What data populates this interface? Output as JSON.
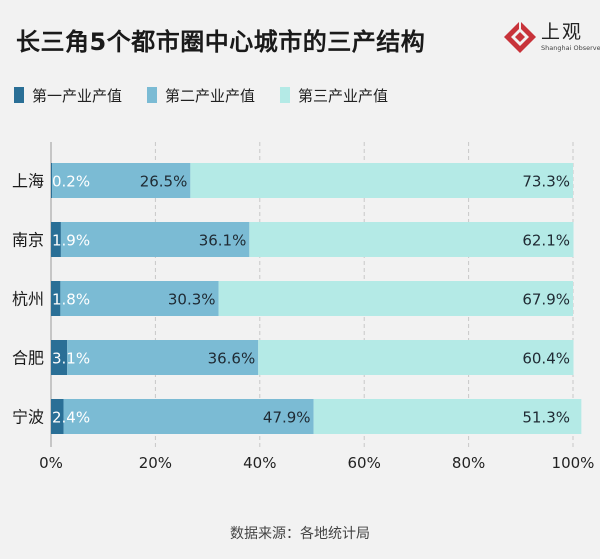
{
  "title": "长三角5个都市圈中心城市的三产结构",
  "logo": {
    "name_cn": "上观",
    "name_en": "Shanghai Observer"
  },
  "source": "数据来源：各地统计局",
  "colors": {
    "primary": "#2a6f96",
    "secondary": "#7bbbd4",
    "tertiary": "#b4eae6",
    "logo_red": "#c8333a"
  },
  "chart_data": {
    "type": "bar",
    "orientation": "horizontal",
    "stacked": true,
    "categories": [
      "上海",
      "南京",
      "杭州",
      "合肥",
      "宁波"
    ],
    "series": [
      {
        "name": "第一产业产值",
        "values": [
          0.2,
          1.9,
          1.8,
          3.1,
          2.4
        ],
        "labels": [
          "0.2%",
          "1.9%",
          "1.8%",
          "3.1%",
          "2.4%"
        ],
        "color": "#2a6f96"
      },
      {
        "name": "第二产业产值",
        "values": [
          26.5,
          36.1,
          30.3,
          36.6,
          47.9
        ],
        "labels": [
          "26.5%",
          "36.1%",
          "30.3%",
          "36.6%",
          "47.9%"
        ],
        "color": "#7bbbd4"
      },
      {
        "name": "第三产业产值",
        "values": [
          73.3,
          62.1,
          67.9,
          60.4,
          51.3
        ],
        "labels": [
          "73.3%",
          "62.1%",
          "67.9%",
          "60.4%",
          "51.3%"
        ],
        "color": "#b4eae6"
      }
    ],
    "xlim": [
      0,
      100
    ],
    "xticks": [
      "0%",
      "20%",
      "40%",
      "60%",
      "80%",
      "100%"
    ],
    "grid": true,
    "legend_position": "top-left"
  }
}
